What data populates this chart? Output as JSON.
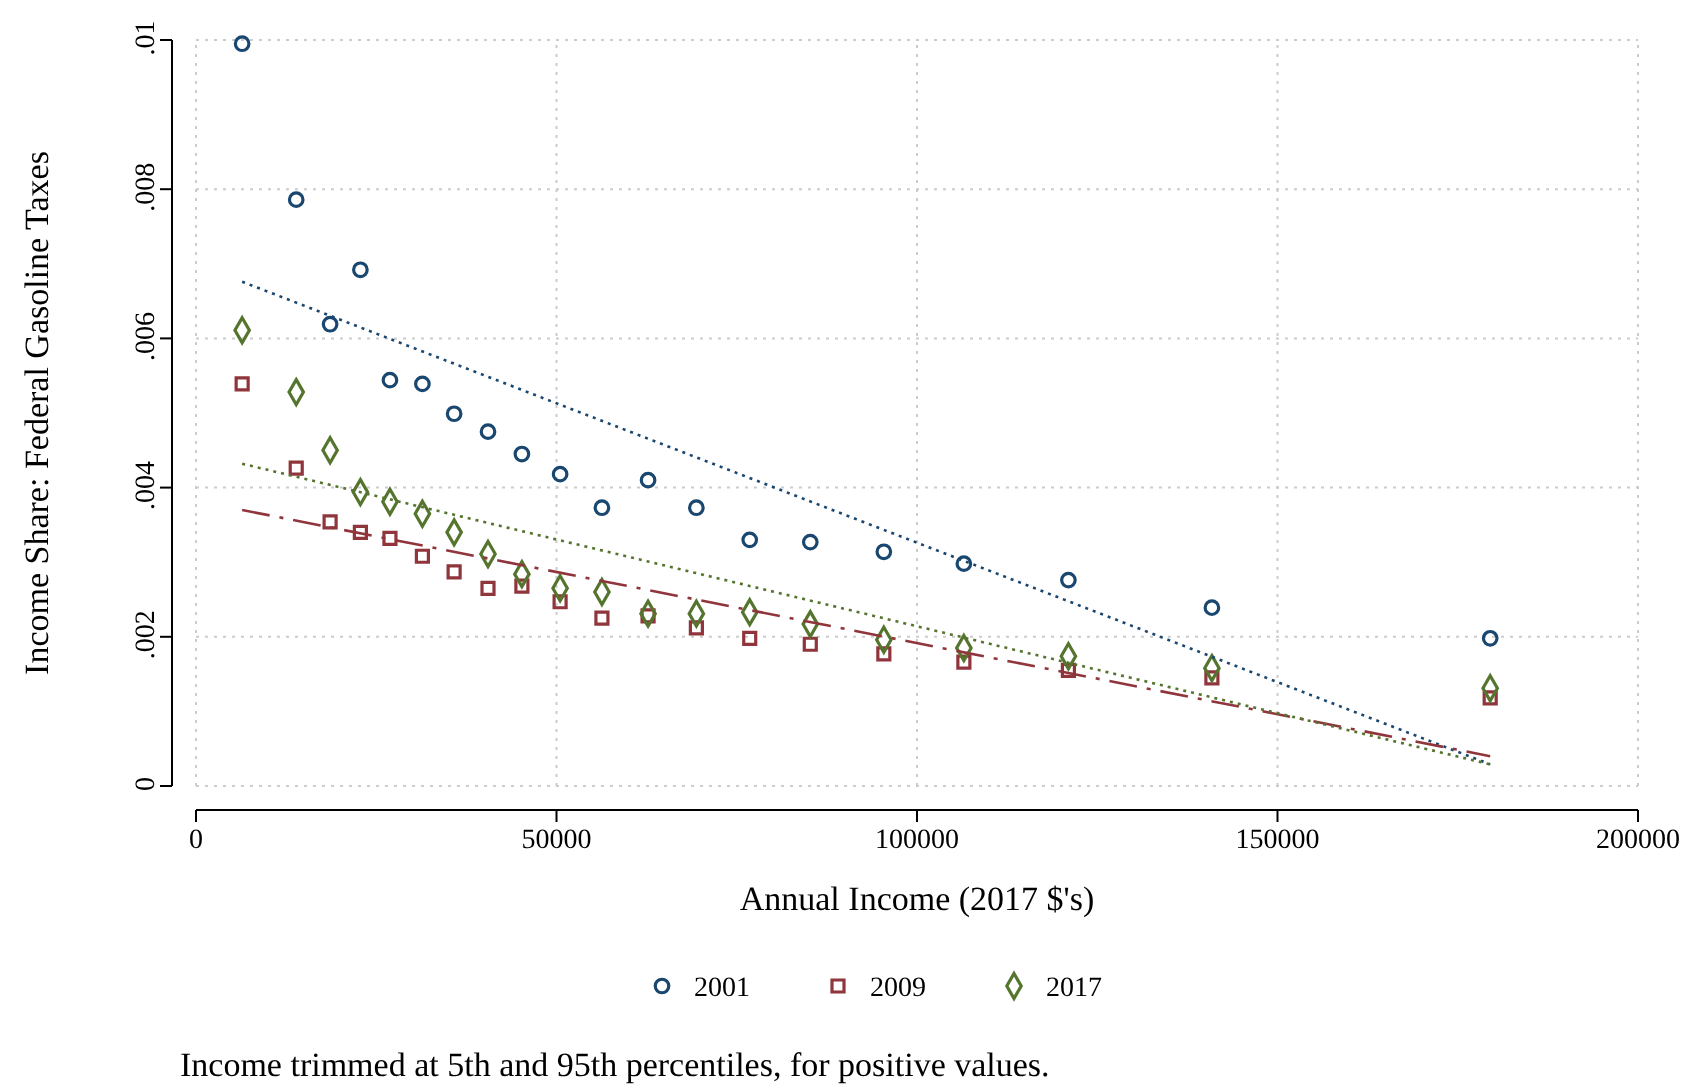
{
  "chart_data": {
    "type": "scatter",
    "xlabel": "Annual Income (2017 $'s)",
    "ylabel": "Income Share: Federal Gasoline Taxes",
    "xlim": [
      0,
      200000
    ],
    "xticks": [
      0,
      50000,
      100000,
      150000,
      200000
    ],
    "ylim": [
      0,
      0.01
    ],
    "yticks": [
      {
        "value": 0,
        "label": "0"
      },
      {
        "value": 0.002,
        "label": ".002"
      },
      {
        "value": 0.004,
        "label": ".004"
      },
      {
        "value": 0.006,
        "label": ".006"
      },
      {
        "value": 0.008,
        "label": ".008"
      },
      {
        "value": 0.01,
        "label": ".01"
      }
    ],
    "grid": true,
    "legend": "bottom",
    "annotations": [
      "Income trimmed at 5th and 95th percentiles, for positive values."
    ],
    "series": [
      {
        "name": "2001",
        "color": "#1a476f",
        "marker": "circle",
        "x": [
          6400,
          13900,
          18600,
          22800,
          26900,
          31400,
          35800,
          40500,
          45200,
          50500,
          56300,
          62700,
          69400,
          76800,
          85200,
          95400,
          106500,
          121000,
          140900,
          179500
        ],
        "values": [
          0.00995,
          0.00786,
          0.00619,
          0.00692,
          0.00544,
          0.00539,
          0.00499,
          0.00475,
          0.00445,
          0.00418,
          0.00373,
          0.0041,
          0.00373,
          0.0033,
          0.00327,
          0.00314,
          0.00298,
          0.00276,
          0.00239,
          0.00198
        ]
      },
      {
        "name": "2009",
        "color": "#90353b",
        "marker": "square",
        "x": [
          6400,
          13900,
          18600,
          22800,
          26900,
          31400,
          35800,
          40500,
          45200,
          50500,
          56300,
          62700,
          69400,
          76800,
          85200,
          95400,
          106500,
          121000,
          140900,
          179500
        ],
        "values": [
          0.00539,
          0.00426,
          0.00354,
          0.0034,
          0.00332,
          0.00308,
          0.00287,
          0.00265,
          0.00268,
          0.00247,
          0.00225,
          0.00228,
          0.00212,
          0.00198,
          0.0019,
          0.00177,
          0.00166,
          0.00155,
          0.00145,
          0.00118
        ]
      },
      {
        "name": "2017",
        "color": "#55752f",
        "marker": "diamond",
        "x": [
          6400,
          13900,
          18600,
          22800,
          26900,
          31400,
          35800,
          40500,
          45200,
          50500,
          56300,
          62700,
          69400,
          76800,
          85200,
          95400,
          106500,
          121000,
          140900,
          179500
        ],
        "values": [
          0.00611,
          0.00528,
          0.0045,
          0.00394,
          0.00381,
          0.00365,
          0.0034,
          0.00311,
          0.00284,
          0.00265,
          0.0026,
          0.00231,
          0.00231,
          0.00233,
          0.00217,
          0.00196,
          0.00185,
          0.00174,
          0.00158,
          0.00131
        ]
      },
      {
        "type": "line",
        "color": "#1a476f",
        "line_style": "dotted",
        "x": [
          6400,
          179500
        ],
        "values": [
          0.00676,
          0.00029
        ]
      },
      {
        "type": "line",
        "color": "#90353b",
        "line_style": "dashdot",
        "x": [
          6400,
          179500
        ],
        "values": [
          0.0037,
          0.0004
        ]
      },
      {
        "type": "line",
        "color": "#55752f",
        "line_style": "dotted",
        "x": [
          6400,
          179500
        ],
        "values": [
          0.00432,
          0.00029
        ]
      }
    ]
  }
}
